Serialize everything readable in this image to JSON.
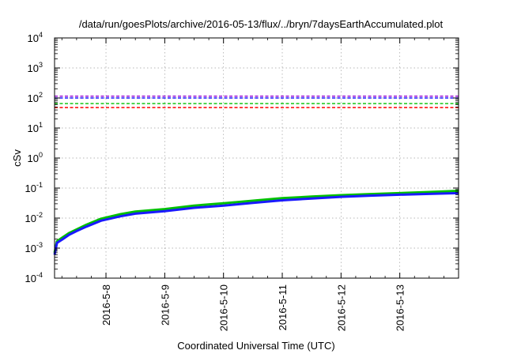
{
  "chart_data": {
    "type": "line",
    "title": "/data/run/goesPlots/archive/2016-05-13/flux/../bryn/7daysEarthAccumulated.plot",
    "xlabel": "Coordinated Universal Time (UTC)",
    "ylabel": "cSv",
    "yscale": "log",
    "ylim": [
      0.0001,
      10000
    ],
    "xlim": [
      "2016-05-07 03:00",
      "2016-05-14 00:00"
    ],
    "grid": true,
    "x_ticks": [
      "2016-5-8",
      "2016-5-9",
      "2016-5-10",
      "2016-5-11",
      "2016-5-12",
      "2016-5-13"
    ],
    "y_ticks": [
      {
        "base": "10",
        "exp": "-4"
      },
      {
        "base": "10",
        "exp": "-3"
      },
      {
        "base": "10",
        "exp": "-2"
      },
      {
        "base": "10",
        "exp": "-1"
      },
      {
        "base": "10",
        "exp": "0"
      },
      {
        "base": "10",
        "exp": "1"
      },
      {
        "base": "10",
        "exp": "2"
      },
      {
        "base": "10",
        "exp": "3"
      },
      {
        "base": "10",
        "exp": "4"
      }
    ],
    "reference_lines": [
      {
        "value": 115,
        "color": "#9400d3"
      },
      {
        "value": 100,
        "color": "#1a1aff"
      },
      {
        "value": 65,
        "color": "#00c000"
      },
      {
        "value": 48,
        "color": "#ff0000"
      }
    ],
    "series": [
      {
        "color": "#00c000",
        "x": [
          "2016-05-07 03:00",
          "2016-05-07 04:00",
          "2016-05-07 06:00",
          "2016-05-07 09:00",
          "2016-05-07 12:00",
          "2016-05-07 16:00",
          "2016-05-07 22:00",
          "2016-05-08 06:00",
          "2016-05-08 12:00",
          "2016-05-09 00:00",
          "2016-05-09 12:00",
          "2016-05-10 00:00",
          "2016-05-10 12:00",
          "2016-05-11 00:00",
          "2016-05-11 12:00",
          "2016-05-12 00:00",
          "2016-05-12 12:00",
          "2016-05-13 00:00",
          "2016-05-13 12:00",
          "2016-05-14 00:00"
        ],
        "values": [
          0.0007,
          0.0017,
          0.0022,
          0.0032,
          0.0042,
          0.006,
          0.0095,
          0.0135,
          0.0165,
          0.02,
          0.026,
          0.031,
          0.038,
          0.046,
          0.052,
          0.058,
          0.063,
          0.068,
          0.074,
          0.081
        ]
      },
      {
        "color": "#1a1aff",
        "x": [
          "2016-05-07 03:00",
          "2016-05-07 04:00",
          "2016-05-07 06:00",
          "2016-05-07 09:00",
          "2016-05-07 12:00",
          "2016-05-07 16:00",
          "2016-05-07 22:00",
          "2016-05-08 06:00",
          "2016-05-08 12:00",
          "2016-05-09 00:00",
          "2016-05-09 12:00",
          "2016-05-10 00:00",
          "2016-05-10 12:00",
          "2016-05-11 00:00",
          "2016-05-11 12:00",
          "2016-05-12 00:00",
          "2016-05-12 12:00",
          "2016-05-13 00:00",
          "2016-05-13 12:00",
          "2016-05-14 00:00"
        ],
        "values": [
          0.0006,
          0.0015,
          0.0019,
          0.0028,
          0.0037,
          0.0052,
          0.0082,
          0.0115,
          0.014,
          0.017,
          0.022,
          0.026,
          0.032,
          0.039,
          0.045,
          0.051,
          0.056,
          0.06,
          0.064,
          0.068
        ]
      }
    ]
  }
}
